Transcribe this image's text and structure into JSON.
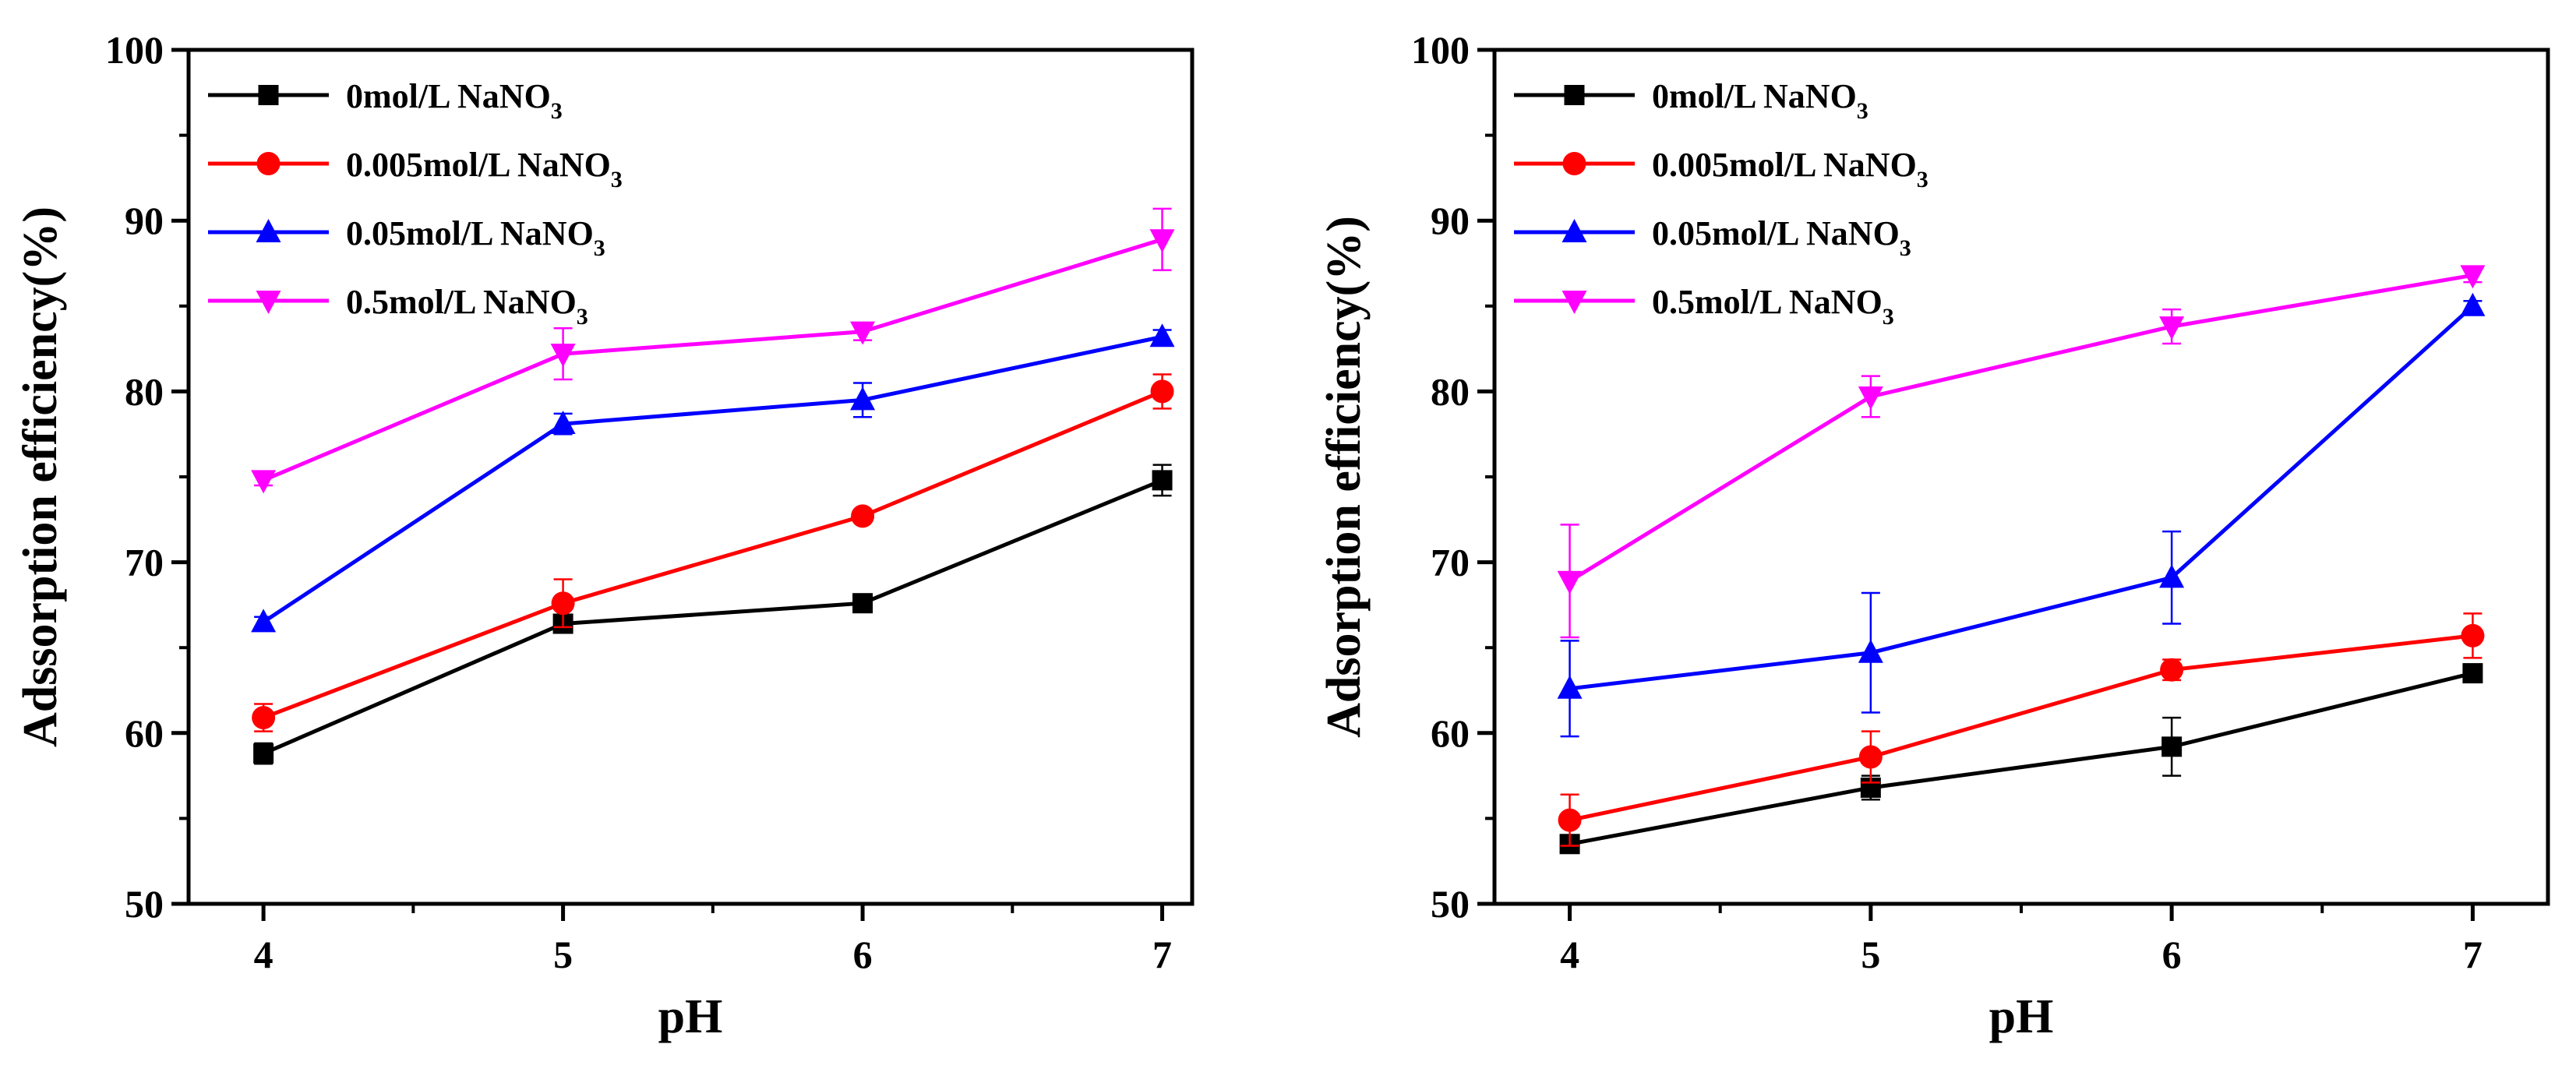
{
  "chart_data": [
    {
      "type": "line",
      "xlabel": "pH",
      "ylabel": "Adssorption efficiency(%)",
      "xlim": [
        3.75,
        7.1
      ],
      "ylim": [
        50,
        100
      ],
      "x": [
        4,
        5,
        6,
        7
      ],
      "xticks": [
        "4",
        "5",
        "6",
        "7"
      ],
      "yticks": [
        "50",
        "60",
        "70",
        "80",
        "90",
        "100"
      ],
      "legend_position": "top-left",
      "series": [
        {
          "name": "0mol/L NaNO3",
          "label_main": "0mol/L NaNO",
          "label_sub": "3",
          "color": "#000000",
          "marker": "square",
          "values": [
            58.8,
            66.4,
            67.6,
            74.8
          ],
          "errors": [
            0.6,
            0.4,
            0.3,
            0.9
          ]
        },
        {
          "name": "0.005mol/L NaNO3",
          "label_main": "0.005mol/L NaNO",
          "label_sub": "3",
          "color": "#ff0000",
          "marker": "circle",
          "values": [
            60.9,
            67.6,
            72.7,
            80.0
          ],
          "errors": [
            0.8,
            1.4,
            0.3,
            1.0
          ]
        },
        {
          "name": "0.05mol/L NaNO3",
          "label_main": "0.05mol/L NaNO",
          "label_sub": "3",
          "color": "#0000ff",
          "marker": "triangle-up",
          "values": [
            66.5,
            78.1,
            79.5,
            83.2
          ],
          "errors": [
            0.3,
            0.6,
            1.0,
            0.4
          ]
        },
        {
          "name": "0.5mol/L NaNO3",
          "label_main": "0.5mol/L NaNO",
          "label_sub": "3",
          "color": "#ff00ff",
          "marker": "triangle-down",
          "values": [
            74.8,
            82.2,
            83.5,
            88.9
          ],
          "errors": [
            0.3,
            1.5,
            0.5,
            1.8
          ]
        }
      ]
    },
    {
      "type": "line",
      "xlabel": "pH",
      "ylabel": "Adsorption efficiency(%)",
      "xlim": [
        3.75,
        7.25
      ],
      "ylim": [
        50,
        100
      ],
      "x": [
        4,
        5,
        6,
        7
      ],
      "xticks": [
        "4",
        "5",
        "6",
        "7"
      ],
      "yticks": [
        "50",
        "60",
        "70",
        "80",
        "90",
        "100"
      ],
      "legend_position": "top-left",
      "series": [
        {
          "name": "0mol/L NaNO3",
          "label_main": "0mol/L NaNO",
          "label_sub": "3",
          "color": "#000000",
          "marker": "square",
          "values": [
            53.5,
            56.8,
            59.2,
            63.5
          ],
          "errors": [
            0.3,
            0.7,
            1.7,
            0.3
          ]
        },
        {
          "name": "0.005mol/L NaNO3",
          "label_main": "0.005mol/L NaNO",
          "label_sub": "3",
          "color": "#ff0000",
          "marker": "circle",
          "values": [
            54.9,
            58.6,
            63.7,
            65.7
          ],
          "errors": [
            1.5,
            1.5,
            0.6,
            1.3
          ]
        },
        {
          "name": "0.05mol/L NaNO3",
          "label_main": "0.05mol/L NaNO",
          "label_sub": "3",
          "color": "#0000ff",
          "marker": "triangle-up",
          "values": [
            62.6,
            64.7,
            69.1,
            85.0
          ],
          "errors": [
            2.8,
            3.5,
            2.7,
            0.3
          ]
        },
        {
          "name": "0.5mol/L NaNO3",
          "label_main": "0.5mol/L NaNO",
          "label_sub": "3",
          "color": "#ff00ff",
          "marker": "triangle-down",
          "values": [
            68.9,
            79.7,
            83.8,
            86.8
          ],
          "errors": [
            3.3,
            1.2,
            1.0,
            0.4
          ]
        }
      ]
    }
  ]
}
